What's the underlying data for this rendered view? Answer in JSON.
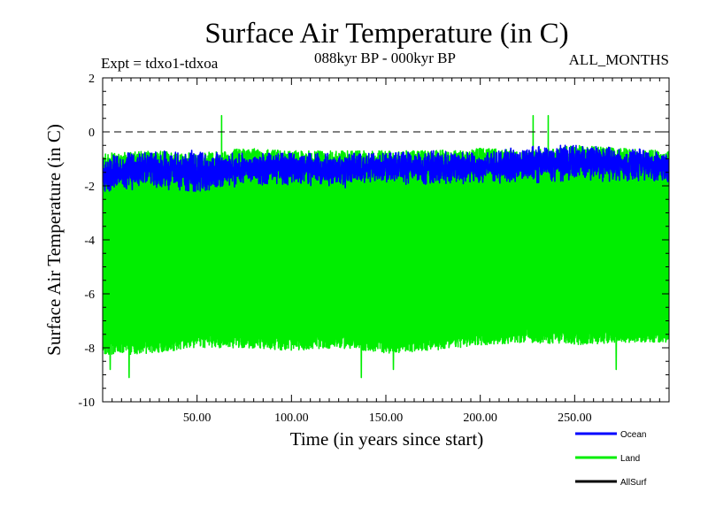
{
  "chart_data": {
    "type": "line",
    "title": "Surface Air Temperature (in C)",
    "subtitle_left": "Expt = tdxo1-tdxoa",
    "subtitle_center": "088kyr BP - 000kyr BP",
    "subtitle_right": "ALL_MONTHS",
    "xlabel": "Time (in years since start)",
    "ylabel": "Surface Air Temperature (in C)",
    "xlim": [
      0,
      300
    ],
    "ylim": [
      -10,
      2
    ],
    "x_ticks": [
      {
        "value": 50,
        "label": "50.00"
      },
      {
        "value": 100,
        "label": "100.00"
      },
      {
        "value": 150,
        "label": "150.00"
      },
      {
        "value": 200,
        "label": "200.00"
      },
      {
        "value": 250,
        "label": "250.00"
      }
    ],
    "y_ticks": [
      {
        "value": 2,
        "label": "2"
      },
      {
        "value": 0,
        "label": "0"
      },
      {
        "value": -2,
        "label": "-2"
      },
      {
        "value": -4,
        "label": "-4"
      },
      {
        "value": -6,
        "label": "-6"
      },
      {
        "value": -8,
        "label": "-8"
      },
      {
        "value": -10,
        "label": "-10"
      }
    ],
    "reference_line": {
      "y": 0,
      "style": "dashed"
    },
    "grid": false,
    "legend_position": "bottom-right",
    "series": [
      {
        "name": "Land",
        "color": "#00ee00",
        "samples_per_year": 12,
        "x": [
          0,
          25,
          50,
          75,
          100,
          125,
          150,
          175,
          200,
          225,
          250,
          275,
          300
        ],
        "upper": [
          -0.8,
          -0.7,
          -0.8,
          -0.6,
          -0.7,
          -0.7,
          -0.7,
          -0.7,
          -0.6,
          -0.7,
          -0.5,
          -0.6,
          -0.7
        ],
        "lower": [
          -8.3,
          -8.2,
          -8.0,
          -8.0,
          -8.1,
          -8.0,
          -8.2,
          -8.1,
          -7.9,
          -7.8,
          -7.9,
          -7.8,
          -7.8
        ],
        "extremes": [
          {
            "x": 4,
            "y": -8.8
          },
          {
            "x": 14,
            "y": -9.1
          },
          {
            "x": 63,
            "y": 0.6
          },
          {
            "x": 137,
            "y": -9.1
          },
          {
            "x": 154,
            "y": -8.8
          },
          {
            "x": 228,
            "y": 0.6
          },
          {
            "x": 236,
            "y": 0.6
          },
          {
            "x": 272,
            "y": -8.8
          }
        ]
      },
      {
        "name": "Ocean",
        "color": "#0000ff",
        "samples_per_year": 12,
        "x": [
          0,
          25,
          50,
          75,
          100,
          125,
          150,
          175,
          200,
          225,
          250,
          275,
          300
        ],
        "upper": [
          -0.8,
          -0.7,
          -0.6,
          -0.8,
          -0.8,
          -0.8,
          -0.8,
          -0.7,
          -0.8,
          -0.5,
          -0.5,
          -0.6,
          -0.7
        ],
        "lower": [
          -2.2,
          -2.1,
          -2.2,
          -2.0,
          -2.1,
          -2.1,
          -2.0,
          -2.0,
          -1.9,
          -1.9,
          -1.8,
          -1.9,
          -1.9
        ],
        "mean": [
          -1.6,
          -1.4,
          -1.5,
          -1.4,
          -1.3,
          -1.4,
          -1.3,
          -1.3,
          -1.3,
          -1.2,
          -1.1,
          -1.2,
          -1.3
        ]
      },
      {
        "name": "AllSurf",
        "color": "#000000",
        "samples_per_year": 0,
        "x": [],
        "upper": [],
        "lower": []
      }
    ]
  }
}
